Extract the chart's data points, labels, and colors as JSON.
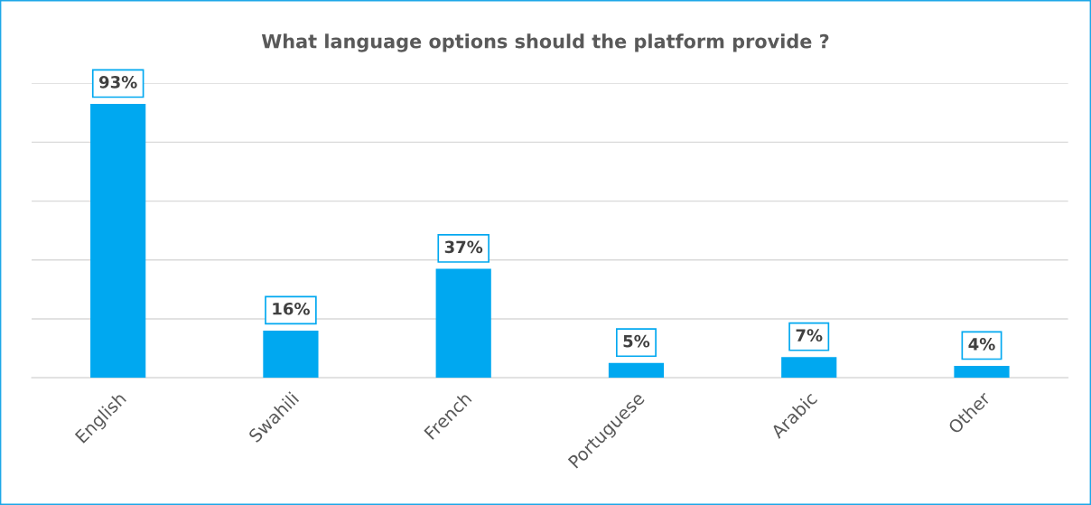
{
  "chart_data": {
    "type": "bar",
    "title": "What language options should the platform provide ?",
    "categories": [
      "English",
      "Swahili",
      "French",
      "Portuguese",
      "Arabic",
      "Other"
    ],
    "values": [
      93,
      16,
      37,
      5,
      7,
      4
    ],
    "value_labels": [
      "93%",
      "16%",
      "37%",
      "5%",
      "7%",
      "4%"
    ],
    "color": "#00a8f0",
    "ylim": [
      0,
      100
    ],
    "yticks": [
      {
        "value": 0,
        "label": null
      },
      {
        "value": 20,
        "label": null
      },
      {
        "value": 40,
        "label": null
      },
      {
        "value": 60,
        "label": null
      },
      {
        "value": 80,
        "label": null
      },
      {
        "value": 100,
        "label": null
      }
    ],
    "grid": "y",
    "tick_labels": "x"
  }
}
